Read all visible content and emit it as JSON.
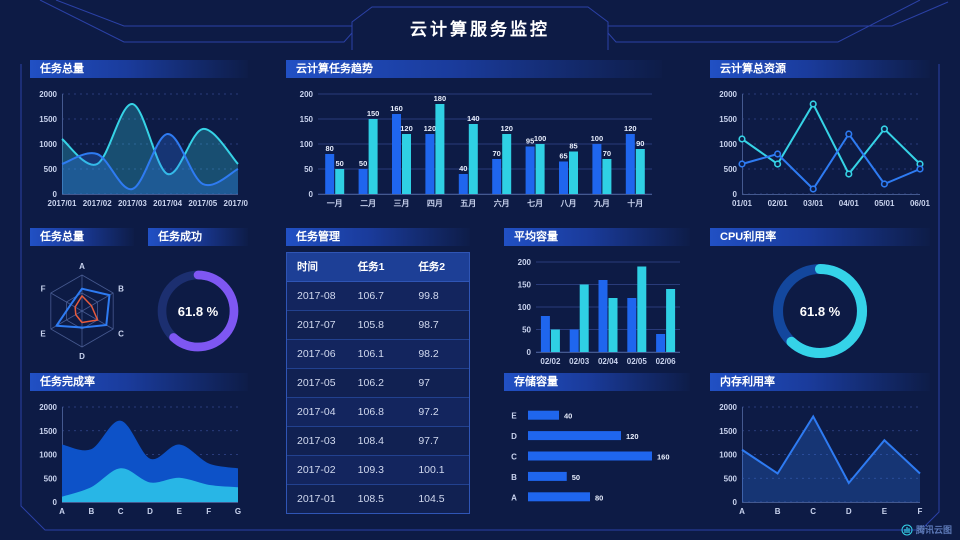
{
  "header": {
    "title": "云计算服务监控"
  },
  "footer": {
    "brand": "腾讯云图"
  },
  "colors": {
    "background": "#0d1b45",
    "frame_line": "#2b41a6",
    "accent_blue": "#2e7bf2",
    "accent_cyan": "#36d3e6",
    "accent_purple": "#7e57f2",
    "accent_orange": "#e65a3d",
    "bar_blue": "#1f66ee",
    "bar_cyan": "#2fd0e4"
  },
  "chart_data": [
    {
      "id": "tasksTotalArea",
      "type": "area",
      "smooth": true,
      "title": "任务总量",
      "categories": [
        "2017/01",
        "2017/02",
        "2017/03",
        "2017/04",
        "2017/05",
        "2017/06"
      ],
      "yticks": [
        0,
        500,
        1000,
        1500,
        2000
      ],
      "ylim": [
        0,
        2000
      ],
      "grid": "dashed",
      "legend": "none",
      "series": [
        {
          "name": "cyan",
          "color": "#36d3e6",
          "values": [
            1100,
            600,
            1800,
            400,
            1300,
            600
          ]
        },
        {
          "name": "blue",
          "color": "#2e7bf2",
          "values": [
            600,
            800,
            100,
            1200,
            200,
            500
          ]
        }
      ]
    },
    {
      "id": "taskTrendBars",
      "type": "bar",
      "title": "云计算任务趋势",
      "categories": [
        "一月",
        "二月",
        "三月",
        "四月",
        "五月",
        "六月",
        "七月",
        "八月",
        "九月",
        "十月"
      ],
      "yticks": [
        0,
        50,
        100,
        150,
        200
      ],
      "ylim": [
        0,
        200
      ],
      "grid": "solid",
      "value_labels": true,
      "legend": "none",
      "series": [
        {
          "name": "blue",
          "color": "#1f66ee",
          "values": [
            80,
            50,
            160,
            120,
            40,
            70,
            95,
            65,
            100,
            120
          ]
        },
        {
          "name": "cyan",
          "color": "#2fd0e4",
          "values": [
            50,
            150,
            120,
            180,
            140,
            120,
            100,
            85,
            70,
            90
          ]
        }
      ]
    },
    {
      "id": "totalResourcesLines",
      "type": "line",
      "markers": true,
      "title": "云计算总资源",
      "categories": [
        "01/01",
        "02/01",
        "03/01",
        "04/01",
        "05/01",
        "06/01"
      ],
      "yticks": [
        0,
        500,
        1000,
        1500,
        2000
      ],
      "ylim": [
        0,
        2000
      ],
      "grid": "dashed",
      "legend": "none",
      "series": [
        {
          "name": "cyan",
          "color": "#36d3e6",
          "values": [
            1100,
            600,
            1800,
            400,
            1300,
            600
          ]
        },
        {
          "name": "blue",
          "color": "#2e7bf2",
          "values": [
            600,
            800,
            100,
            1200,
            200,
            500
          ]
        }
      ]
    },
    {
      "id": "tasksRadar",
      "type": "radar",
      "title": "任务总量",
      "axes": [
        "A",
        "B",
        "C",
        "D",
        "E",
        "F"
      ],
      "max": 100,
      "series": [
        {
          "name": "blue",
          "color": "#2e7bf2",
          "values": [
            62,
            88,
            78,
            46,
            82,
            36
          ]
        },
        {
          "name": "orange",
          "color": "#e65a3d",
          "values": [
            42,
            30,
            50,
            32,
            20,
            22
          ]
        }
      ]
    },
    {
      "id": "taskSuccessDonut",
      "type": "donut",
      "title": "任务成功",
      "value": 61.8,
      "unit": "%",
      "label": "61.8 %",
      "color": "#7e57f2",
      "track": "#1c2f70"
    },
    {
      "id": "taskTable",
      "type": "table",
      "title": "任务管理",
      "columns": [
        "时间",
        "任务1",
        "任务2"
      ],
      "rows": [
        [
          "2017-08",
          "106.7",
          "99.8"
        ],
        [
          "2017-07",
          "105.8",
          "98.7"
        ],
        [
          "2017-06",
          "106.1",
          "98.2"
        ],
        [
          "2017-05",
          "106.2",
          "97"
        ],
        [
          "2017-04",
          "106.8",
          "97.2"
        ],
        [
          "2017-03",
          "108.4",
          "97.7"
        ],
        [
          "2017-02",
          "109.3",
          "100.1"
        ],
        [
          "2017-01",
          "108.5",
          "104.5"
        ]
      ]
    },
    {
      "id": "avgCapacityBars",
      "type": "bar",
      "title": "平均容量",
      "categories": [
        "02/02",
        "02/03",
        "02/04",
        "02/05",
        "02/06"
      ],
      "yticks": [
        0,
        50,
        100,
        150,
        200
      ],
      "ylim": [
        0,
        200
      ],
      "grid": "solid",
      "value_labels": false,
      "legend": "none",
      "series": [
        {
          "name": "blue",
          "color": "#1f66ee",
          "values": [
            80,
            50,
            160,
            120,
            40
          ]
        },
        {
          "name": "cyan",
          "color": "#2fd0e4",
          "values": [
            50,
            150,
            120,
            190,
            140
          ]
        }
      ]
    },
    {
      "id": "cpuDonut",
      "type": "donut",
      "title": "CPU利用率",
      "value": 61.8,
      "unit": "%",
      "label": "61.8 %",
      "color": "#35d3e8",
      "track": "#13479d"
    },
    {
      "id": "completionArea",
      "type": "overlap-area",
      "smooth": true,
      "title": "任务完成率",
      "categories": [
        "A",
        "B",
        "C",
        "D",
        "E",
        "F",
        "G"
      ],
      "yticks": [
        0,
        500,
        1000,
        1500,
        2000
      ],
      "ylim": [
        0,
        2000
      ],
      "grid": "dashed",
      "legend": "none",
      "series": [
        {
          "name": "blue",
          "color": "#0d52c8",
          "values": [
            1200,
            1100,
            1700,
            900,
            1200,
            800,
            700
          ]
        },
        {
          "name": "cyan",
          "color": "#28b6e6",
          "values": [
            100,
            300,
            700,
            400,
            500,
            350,
            300
          ]
        }
      ]
    },
    {
      "id": "storageHbars",
      "type": "hbar",
      "title": "存储容量",
      "categories": [
        "E",
        "D",
        "C",
        "B",
        "A"
      ],
      "values": [
        40,
        120,
        160,
        50,
        80
      ],
      "color": "#1f66ee",
      "xmax": 160,
      "value_labels": true
    },
    {
      "id": "memoryLine",
      "type": "area",
      "smooth": false,
      "title": "内存利用率",
      "categories": [
        "A",
        "B",
        "C",
        "D",
        "E",
        "F"
      ],
      "yticks": [
        0,
        500,
        1000,
        1500,
        2000
      ],
      "ylim": [
        0,
        2000
      ],
      "grid": "dashed",
      "legend": "none",
      "series": [
        {
          "name": "blue",
          "color": "#2e7bf2",
          "values": [
            1100,
            600,
            1800,
            400,
            1300,
            600
          ]
        }
      ]
    }
  ]
}
